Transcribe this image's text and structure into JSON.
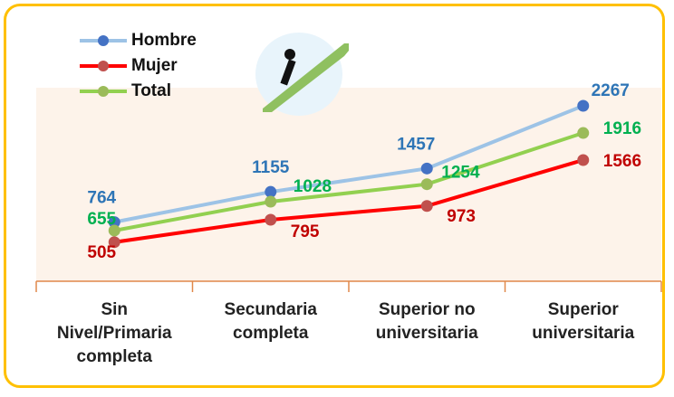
{
  "chart_data": {
    "type": "line",
    "categories": [
      "Sin Nivel/Primaria completa",
      "Secundaria completa",
      "Superior no universitaria",
      "Superior universitaria"
    ],
    "series": [
      {
        "name": "Hombre",
        "color": "#9dc3e6",
        "marker_color": "#4472c4",
        "label_color": "#2e75b6",
        "values": [
          764,
          1155,
          1457,
          2267
        ]
      },
      {
        "name": "Mujer",
        "color": "#ff0000",
        "marker_color": "#c0504d",
        "label_color": "#c00000",
        "values": [
          505,
          795,
          973,
          1566
        ]
      },
      {
        "name": "Total",
        "color": "#92d050",
        "marker_color": "#9bbb59",
        "label_color": "#00b050",
        "values": [
          655,
          1028,
          1254,
          1916
        ]
      }
    ],
    "legend": "top-left"
  }
}
